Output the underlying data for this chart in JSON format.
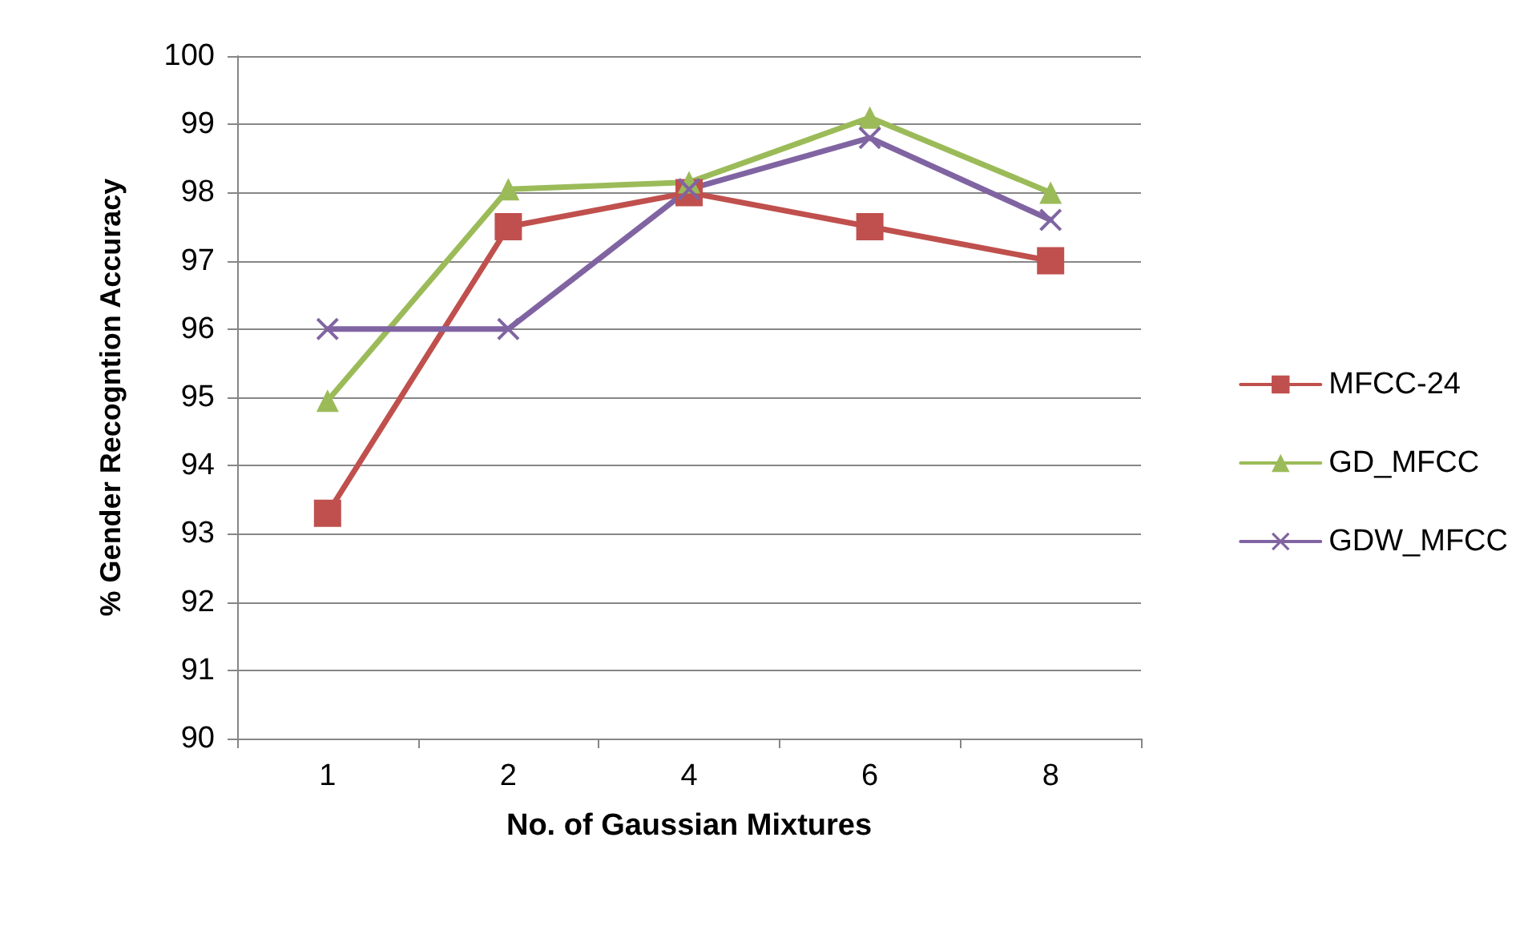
{
  "chart_data": {
    "type": "line",
    "xlabel": "No. of Gaussian Mixtures",
    "ylabel": "% Gender Recogntion Accuracy",
    "categories": [
      "1",
      "2",
      "4",
      "6",
      "8"
    ],
    "series": [
      {
        "name": "MFCC-24",
        "color": "#c0504d",
        "marker": "square",
        "values": [
          93.3,
          97.5,
          98,
          97.5,
          97
        ]
      },
      {
        "name": "GD_MFCC",
        "color": "#9bbb59",
        "marker": "triangle",
        "values": [
          94.95,
          98.05,
          98.15,
          99.1,
          98
        ]
      },
      {
        "name": "GDW_MFCC",
        "color": "#8064a2",
        "marker": "cross",
        "values": [
          96,
          96,
          98.05,
          98.8,
          97.6
        ]
      }
    ],
    "ylim": [
      90,
      100
    ],
    "yticks": [
      90,
      91,
      92,
      93,
      94,
      95,
      96,
      97,
      98,
      99,
      100
    ],
    "grid": "y",
    "legend": "right"
  }
}
